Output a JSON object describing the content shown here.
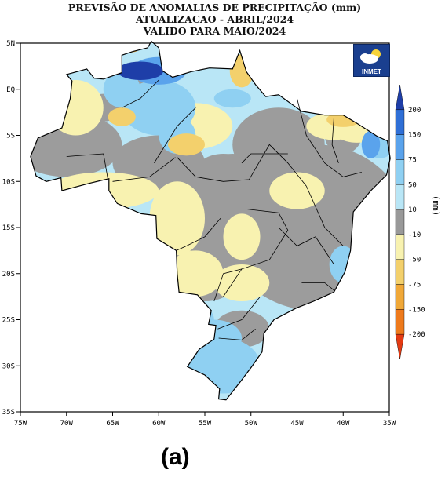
{
  "title": {
    "line1": "PREVISÃO DE ANOMALIAS DE PRECIPITAÇÃO (mm)",
    "line2": "ATUALIZACAO - ABRIL/2024",
    "line3": "VALIDO PARA MAIO/2024"
  },
  "logo_text": "INMET",
  "caption": "(a)",
  "map": {
    "lon_ticks": [
      "75W",
      "70W",
      "65W",
      "60W",
      "55W",
      "50W",
      "45W",
      "40W",
      "35W"
    ],
    "lat_ticks": [
      "5N",
      "EQ",
      "5S",
      "10S",
      "15S",
      "20S",
      "25S",
      "30S",
      "35S"
    ],
    "lon_range": [
      -75,
      -35
    ],
    "lat_range": [
      -35,
      5
    ]
  },
  "legend": {
    "unit": "(mm)",
    "colors": [
      "#1e3ea8",
      "#2f6fd6",
      "#5aa3ec",
      "#8fd0f2",
      "#b9e6f6",
      "#999999",
      "#f8f2b0",
      "#f3d06c",
      "#f0a838",
      "#ee7a1c",
      "#e43a12"
    ],
    "labels": [
      "200",
      "150",
      "75",
      "50",
      "10",
      "-10",
      "-50",
      "-75",
      "-150",
      "-200"
    ]
  },
  "colors": {
    "gray": "#9c9c9c",
    "light_blue": "#b9e6f6",
    "mid_blue": "#8fd0f2",
    "blue": "#5aa3ec",
    "dark_blue": "#1e3ea8",
    "yellow": "#f8f2b0",
    "orange_light": "#f3d06c",
    "orange": "#f0a838"
  }
}
